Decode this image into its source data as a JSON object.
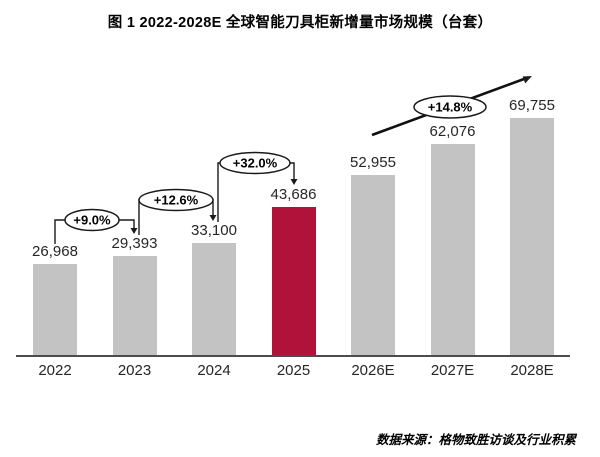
{
  "title": "图 1 2022-2028E 全球智能刀具柜新增量市场规模（台套）",
  "source": "数据来源：格物致胜访谈及行业积累",
  "colors": {
    "bar_gray": "#C3C3C3",
    "highlight_red": "#B0123A",
    "axis": "#4c4c4c",
    "label_text": "#262626"
  },
  "chart_data": {
    "type": "bar",
    "title": "图 1 2022-2028E 全球智能刀具柜新增量市场规模（台套）",
    "unit": "台套",
    "categories": [
      "2022",
      "2023",
      "2024",
      "2025",
      "2026E",
      "2027E",
      "2028E"
    ],
    "values": [
      26968,
      29393,
      33100,
      43686,
      52955,
      62076,
      69755
    ],
    "value_labels": [
      "26,968",
      "29,393",
      "33,100",
      "43,686",
      "52,955",
      "62,076",
      "69,755"
    ],
    "bar_colors": [
      "#C3C3C3",
      "#C3C3C3",
      "#C3C3C3",
      "#B0123A",
      "#C3C3C3",
      "#C3C3C3",
      "#C3C3C3"
    ],
    "highlight_index": 3,
    "ylim": [
      0,
      69755
    ],
    "grid": false,
    "legend": null,
    "xlabel": "",
    "ylabel": "",
    "growth_annotations": [
      {
        "label": "+9.0%",
        "from": "2022",
        "to": "2023",
        "style": "bracket"
      },
      {
        "label": "+12.6%",
        "from": "2023",
        "to": "2024",
        "style": "bracket"
      },
      {
        "label": "+32.0%",
        "from": "2024",
        "to": "2025",
        "style": "bracket"
      },
      {
        "label": "+14.8%",
        "from": "2026E",
        "to": "2028E",
        "style": "trend-arrow"
      }
    ],
    "source": "数据来源：格物致胜访谈及行业积累"
  }
}
